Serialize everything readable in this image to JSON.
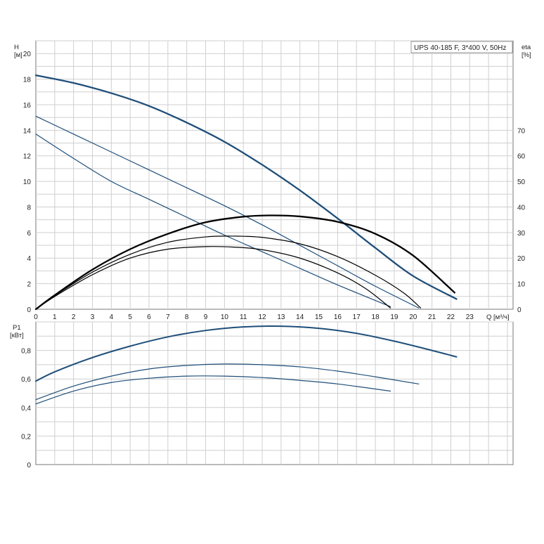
{
  "chart_data": [
    {
      "type": "line",
      "title": "UPS 40-185 F, 3*400 V, 50Hz",
      "ylabel": "H",
      "yunit": "[м]",
      "y2label": "eta",
      "y2unit": "[%]",
      "xlabel": "Q",
      "xunit": "[м³/ч]",
      "xlim": [
        0,
        25.3
      ],
      "ylim": [
        0,
        21
      ],
      "y2lim": [
        0,
        105
      ],
      "grid": true,
      "x_ticks": [
        "0",
        "1",
        "2",
        "3",
        "4",
        "5",
        "6",
        "7",
        "8",
        "9",
        "10",
        "11",
        "12",
        "13",
        "14",
        "15",
        "16",
        "17",
        "18",
        "19",
        "20",
        "21",
        "22",
        "23"
      ],
      "y_ticks": [
        "0",
        "2",
        "4",
        "6",
        "8",
        "10",
        "12",
        "14",
        "16",
        "18",
        "20"
      ],
      "y2_ticks": [
        "0",
        "10",
        "20",
        "30",
        "40",
        "50",
        "60",
        "70"
      ],
      "series": [
        {
          "kind": "head",
          "color": "#1f4e79",
          "width": 2.3,
          "x": [
            0,
            2,
            4,
            6,
            8,
            10,
            12,
            14,
            16,
            18,
            20,
            22.3
          ],
          "y": [
            18.3,
            17.7,
            16.9,
            15.9,
            14.6,
            13.1,
            11.3,
            9.3,
            7.1,
            4.8,
            2.6,
            0.8
          ]
        },
        {
          "kind": "head",
          "color": "#1f4e79",
          "width": 1.2,
          "x": [
            0,
            2,
            4,
            6,
            8,
            10,
            12,
            14,
            16,
            18,
            20.3
          ],
          "y": [
            15.1,
            13.7,
            12.3,
            10.9,
            9.5,
            8.1,
            6.6,
            5.0,
            3.4,
            1.8,
            0.1
          ]
        },
        {
          "kind": "head",
          "color": "#1f4e79",
          "width": 1.2,
          "x": [
            0,
            2,
            4,
            6,
            8,
            10,
            12,
            14,
            16,
            18.8
          ],
          "y": [
            13.7,
            11.8,
            10.0,
            8.6,
            7.2,
            5.8,
            4.5,
            3.2,
            1.9,
            0.2
          ]
        },
        {
          "kind": "eta",
          "color": "#000000",
          "width": 2.3,
          "x": [
            0,
            1,
            3,
            5,
            7,
            9,
            11,
            12.5,
            14,
            16,
            18,
            20,
            22.2
          ],
          "y": [
            0,
            5.5,
            15.5,
            23.5,
            29.5,
            34,
            36.2,
            36.7,
            36.3,
            34.2,
            29.5,
            21,
            6.5
          ]
        },
        {
          "kind": "eta",
          "color": "#000000",
          "width": 1.2,
          "x": [
            0,
            1,
            3,
            5,
            7,
            9,
            10.5,
            12,
            14,
            16,
            18,
            19.5,
            20.4
          ],
          "y": [
            0,
            5.3,
            14.5,
            21.5,
            26.2,
            28.3,
            28.6,
            28.1,
            25.6,
            20.6,
            13.3,
            6.4,
            0.5
          ]
        },
        {
          "kind": "eta",
          "color": "#000000",
          "width": 1.2,
          "x": [
            0,
            1,
            3,
            5,
            7,
            9,
            10.5,
            12,
            14,
            16,
            17.5,
            18.8
          ],
          "y": [
            0,
            5,
            13.5,
            20,
            23.5,
            24.5,
            24.3,
            23.3,
            20,
            14.2,
            8,
            0.5
          ]
        }
      ]
    },
    {
      "type": "line",
      "ylabel": "P1",
      "yunit": "[кВт]",
      "xlim": [
        0,
        25.3
      ],
      "ylim": [
        0,
        1.0
      ],
      "grid": true,
      "y_ticks": [
        "0",
        "0,2",
        "0,4",
        "0,6",
        "0,8"
      ],
      "series": [
        {
          "color": "#1f4e79",
          "width": 2.0,
          "x": [
            0,
            1,
            3,
            5,
            7,
            9,
            11,
            13,
            15,
            17,
            19,
            21,
            22.3
          ],
          "y": [
            0.585,
            0.65,
            0.75,
            0.83,
            0.895,
            0.94,
            0.965,
            0.97,
            0.955,
            0.92,
            0.865,
            0.8,
            0.755
          ]
        },
        {
          "color": "#1f4e79",
          "width": 1.2,
          "x": [
            0,
            2,
            4,
            6,
            8,
            10,
            12,
            14,
            16,
            18,
            20.3
          ],
          "y": [
            0.455,
            0.55,
            0.62,
            0.67,
            0.695,
            0.705,
            0.7,
            0.685,
            0.655,
            0.615,
            0.565
          ]
        },
        {
          "color": "#1f4e79",
          "width": 1.2,
          "x": [
            0,
            2,
            4,
            6,
            8,
            10,
            12,
            14,
            16,
            18.8
          ],
          "y": [
            0.425,
            0.515,
            0.575,
            0.605,
            0.62,
            0.62,
            0.61,
            0.59,
            0.565,
            0.515
          ]
        }
      ]
    }
  ]
}
